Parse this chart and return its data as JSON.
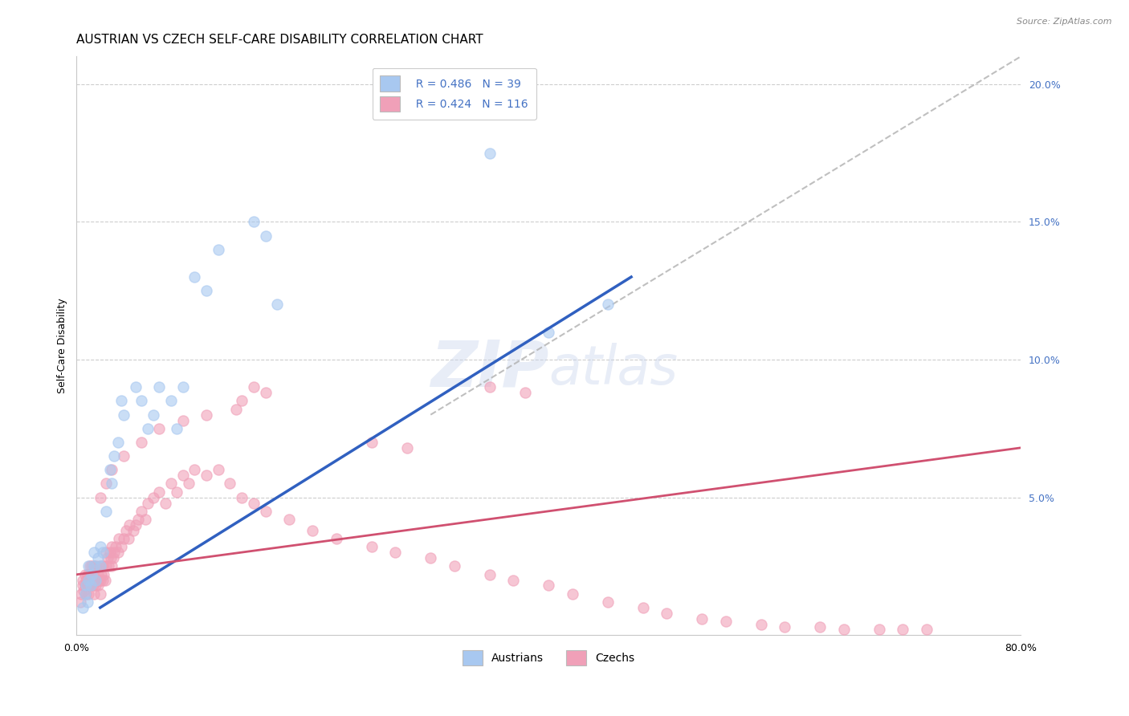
{
  "title": "AUSTRIAN VS CZECH SELF-CARE DISABILITY CORRELATION CHART",
  "source": "Source: ZipAtlas.com",
  "ylabel": "Self-Care Disability",
  "xlim": [
    0.0,
    0.8
  ],
  "ylim": [
    0.0,
    0.21
  ],
  "background_color": "#ffffff",
  "grid_color": "#c8c8c8",
  "watermark_line1": "ZIP",
  "watermark_line2": "atlas",
  "legend_R_austrians": "R = 0.486",
  "legend_N_austrians": "N = 39",
  "legend_R_czechs": "R = 0.424",
  "legend_N_czechs": "N = 116",
  "austrians_color": "#a8c8f0",
  "czechs_color": "#f0a0b8",
  "line_austrians_color": "#3060c0",
  "line_czechs_color": "#d05070",
  "diag_line_color": "#b0b0b0",
  "austrians_x": [
    0.005,
    0.007,
    0.008,
    0.009,
    0.01,
    0.01,
    0.012,
    0.013,
    0.015,
    0.015,
    0.016,
    0.018,
    0.02,
    0.02,
    0.022,
    0.025,
    0.028,
    0.03,
    0.032,
    0.035,
    0.038,
    0.04,
    0.05,
    0.055,
    0.06,
    0.065,
    0.07,
    0.08,
    0.085,
    0.09,
    0.1,
    0.11,
    0.12,
    0.15,
    0.16,
    0.17,
    0.35,
    0.4,
    0.45
  ],
  "austrians_y": [
    0.01,
    0.015,
    0.018,
    0.012,
    0.02,
    0.025,
    0.018,
    0.022,
    0.025,
    0.03,
    0.02,
    0.028,
    0.025,
    0.032,
    0.03,
    0.045,
    0.06,
    0.055,
    0.065,
    0.07,
    0.085,
    0.08,
    0.09,
    0.085,
    0.075,
    0.08,
    0.09,
    0.085,
    0.075,
    0.09,
    0.13,
    0.125,
    0.14,
    0.15,
    0.145,
    0.12,
    0.175,
    0.11,
    0.12
  ],
  "czechs_x": [
    0.003,
    0.004,
    0.005,
    0.005,
    0.006,
    0.007,
    0.007,
    0.008,
    0.008,
    0.009,
    0.009,
    0.01,
    0.01,
    0.01,
    0.011,
    0.011,
    0.012,
    0.012,
    0.013,
    0.013,
    0.014,
    0.014,
    0.015,
    0.015,
    0.015,
    0.016,
    0.017,
    0.017,
    0.018,
    0.018,
    0.019,
    0.02,
    0.02,
    0.02,
    0.021,
    0.022,
    0.022,
    0.023,
    0.024,
    0.025,
    0.025,
    0.026,
    0.027,
    0.028,
    0.029,
    0.03,
    0.03,
    0.031,
    0.032,
    0.033,
    0.035,
    0.036,
    0.038,
    0.04,
    0.042,
    0.044,
    0.045,
    0.048,
    0.05,
    0.052,
    0.055,
    0.058,
    0.06,
    0.065,
    0.07,
    0.075,
    0.08,
    0.085,
    0.09,
    0.095,
    0.1,
    0.11,
    0.12,
    0.13,
    0.14,
    0.15,
    0.16,
    0.18,
    0.2,
    0.22,
    0.25,
    0.27,
    0.3,
    0.32,
    0.35,
    0.37,
    0.4,
    0.42,
    0.45,
    0.48,
    0.5,
    0.53,
    0.55,
    0.58,
    0.6,
    0.63,
    0.65,
    0.68,
    0.7,
    0.72,
    0.35,
    0.38,
    0.25,
    0.28,
    0.15,
    0.16,
    0.14,
    0.135,
    0.11,
    0.09,
    0.07,
    0.055,
    0.04,
    0.03,
    0.025,
    0.02
  ],
  "czechs_y": [
    0.012,
    0.015,
    0.018,
    0.02,
    0.016,
    0.018,
    0.022,
    0.015,
    0.02,
    0.018,
    0.022,
    0.015,
    0.018,
    0.022,
    0.02,
    0.025,
    0.018,
    0.022,
    0.02,
    0.025,
    0.018,
    0.022,
    0.015,
    0.02,
    0.025,
    0.018,
    0.02,
    0.025,
    0.018,
    0.022,
    0.02,
    0.015,
    0.02,
    0.025,
    0.022,
    0.02,
    0.025,
    0.022,
    0.02,
    0.025,
    0.03,
    0.028,
    0.025,
    0.03,
    0.028,
    0.025,
    0.032,
    0.028,
    0.03,
    0.032,
    0.03,
    0.035,
    0.032,
    0.035,
    0.038,
    0.035,
    0.04,
    0.038,
    0.04,
    0.042,
    0.045,
    0.042,
    0.048,
    0.05,
    0.052,
    0.048,
    0.055,
    0.052,
    0.058,
    0.055,
    0.06,
    0.058,
    0.06,
    0.055,
    0.05,
    0.048,
    0.045,
    0.042,
    0.038,
    0.035,
    0.032,
    0.03,
    0.028,
    0.025,
    0.022,
    0.02,
    0.018,
    0.015,
    0.012,
    0.01,
    0.008,
    0.006,
    0.005,
    0.004,
    0.003,
    0.003,
    0.002,
    0.002,
    0.002,
    0.002,
    0.09,
    0.088,
    0.07,
    0.068,
    0.09,
    0.088,
    0.085,
    0.082,
    0.08,
    0.078,
    0.075,
    0.07,
    0.065,
    0.06,
    0.055,
    0.05
  ],
  "title_fontsize": 11,
  "label_fontsize": 9,
  "tick_fontsize": 9,
  "legend_fontsize": 10
}
